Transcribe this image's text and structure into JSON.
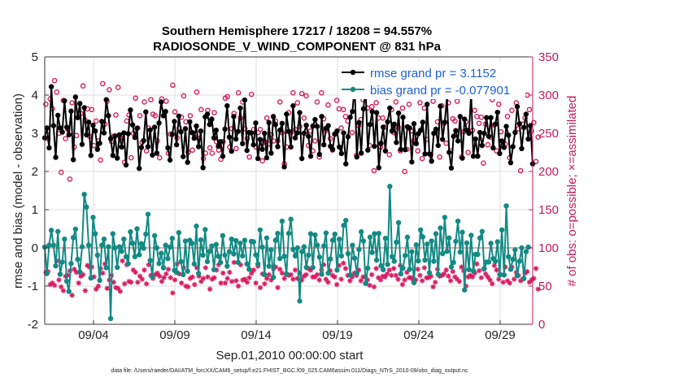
{
  "chart_data": {
    "type": "line",
    "title": "Southern Hemisphere 17217 / 18208 = 94.557%",
    "subtitle": "RADIOSONDE_V_WIND_COMPONENT @ 831 hPa",
    "xlabel": "Sep.01,2010 00:00:00 start",
    "ylabel": "rmse and bias (model - observation)",
    "ylabel_right": "# of obs: o=possible; ×=assimilated",
    "footnote": "data file: /Users/raeder/DAI/ATM_forcXX/CAM6_setup/f.e21.FHIST_BGC.f09_025.CAM6assim.011/Diags_NTrS_2010-09/obs_diag_output.nc",
    "xlim": [
      1,
      31
    ],
    "ylim": [
      -2,
      5
    ],
    "ylim_right": [
      0,
      350
    ],
    "x_ticks": [
      4,
      9,
      14,
      19,
      24,
      29
    ],
    "x_tick_labels": [
      "09/04",
      "09/09",
      "09/14",
      "09/19",
      "09/24",
      "09/29"
    ],
    "y_ticks": [
      -2,
      -1,
      0,
      1,
      2,
      3,
      4,
      5
    ],
    "y_tick_labels": [
      "-2",
      "-1",
      "0",
      "1",
      "2",
      "3",
      "4",
      "5"
    ],
    "y_ticks_right": [
      0,
      50,
      100,
      150,
      200,
      250,
      300,
      350
    ],
    "y_tick_labels_right": [
      "0",
      "50",
      "100",
      "150",
      "200",
      "250",
      "300",
      "350"
    ],
    "legend": [
      "rmse grand pr = 3.1152",
      "bias grand pr = -0.077901"
    ],
    "reference_line": 0,
    "colors": {
      "rmse": "#000000",
      "bias": "#138a84",
      "counts": "#d81b60",
      "reference": "#e6aaaa",
      "legend_text": "#1b5fd6"
    },
    "series": [
      {
        "name": "rmse",
        "values": [
          2.88,
          3.14,
          2.62,
          4.22,
          3.2,
          2.37,
          3.47,
          3.14,
          3.03,
          3.85,
          3.16,
          2.96,
          3.58,
          2.31,
          3.95,
          3.41,
          3.78,
          2.71,
          3.67,
          2.96,
          3.29,
          2.42,
          3.21,
          3.06,
          2.58,
          2.74,
          3.31,
          3.01,
          3.88,
          3.46,
          2.86,
          2.42,
          2.93,
          2.35,
          2.96,
          2.64,
          3.01,
          2.17,
          2.99,
          3.61,
          3.22,
          2.89,
          3.13,
          2.08,
          2.63,
          2.81,
          3.56,
          2.65,
          3.09,
          2.43,
          3.16,
          2.48,
          3.27,
          3.82,
          3.46,
          3.57,
          2.62,
          2.3,
          2.97,
          3.31,
          2.7,
          3.45,
          3.04,
          2.39,
          3.12,
          2.24,
          3.3,
          3.02,
          2.87,
          3.19,
          2.65,
          3.06,
          2.1,
          3.43,
          3.5,
          3.23,
          3.37,
          2.88,
          3.08,
          2.66,
          2.78,
          2.4,
          3.11,
          3.72,
          2.9,
          2.53,
          3.44,
          2.85,
          3.05,
          3.66,
          2.73,
          3.87,
          2.55,
          3.02,
          3.01,
          2.7,
          3.27,
          2.34,
          2.84,
          2.58,
          3.0,
          2.36,
          3.28,
          2.48,
          3.44,
          3.23,
          2.65,
          3.08,
          3.26,
          2.12,
          3.5,
          3.05,
          2.64,
          3.72,
          2.88,
          3.01,
          3.54,
          2.34,
          3.0,
          3.21,
          2.92,
          2.4,
          3.19,
          3.36,
          3.18,
          2.45,
          3.44,
          2.7,
          3.13,
          3.2,
          2.66,
          2.58,
          2.98,
          3.06,
          2.64,
          2.47,
          3.01,
          2.2,
          2.91,
          3.42,
          3.57,
          4.25,
          2.38,
          3.28,
          2.48,
          3.64,
          4.14,
          2.56,
          3.23,
          3.57,
          2.66,
          3.54,
          2.1,
          2.74,
          3.16,
          2.54,
          3.3,
          3.66,
          3.06,
          3.24,
          2.76,
          3.53,
          2.58,
          3.42,
          2.57,
          3.17,
          3.14,
          2.25,
          3.25,
          2.73,
          2.99,
          3.08,
          3.29,
          2.46,
          3.76,
          2.46,
          2.27,
          3.0,
          3.11,
          2.68,
          3.71,
          2.84,
          3.29,
          3.95,
          2.5,
          2.09,
          2.92,
          3.07,
          2.8,
          3.44,
          2.35,
          3.37,
          3.08,
          3.0,
          4.05,
          2.4,
          2.85,
          2.4,
          3.02,
          2.68,
          3.0,
          3.41,
          2.92,
          3.41,
          2.62,
          3.24,
          3.55,
          2.47,
          2.8,
          2.63,
          3.18,
          2.95,
          2.23,
          2.65,
          3.02,
          3.7,
          3.25,
          2.6,
          3.15,
          3.5,
          2.85,
          3.2,
          2.2
        ]
      },
      {
        "name": "bias",
        "values": [
          0.02,
          -0.67,
          0.07,
          0.46,
          0.07,
          -0.47,
          0.43,
          -0.69,
          -0.37,
          0.23,
          -0.87,
          -1.14,
          -0.41,
          0.27,
          0.49,
          -0.3,
          -0.63,
          0.03,
          1.4,
          1.07,
          0.07,
          -0.79,
          0.8,
          0.37,
          -0.19,
          -0.85,
          0.07,
          0.23,
          -0.52,
          0.03,
          -1.85,
          0.37,
          0.0,
          -0.51,
          0.03,
          -0.09,
          0.23,
          -0.23,
          -0.41,
          0.42,
          0.12,
          -0.23,
          0.5,
          -0.18,
          0.11,
          -0.01,
          0.36,
          0.88,
          -0.33,
          -0.76,
          0.32,
          0.0,
          -0.41,
          -0.14,
          -0.52,
          0.07,
          -0.28,
          0.02,
          0.25,
          -0.59,
          -0.64,
          0.4,
          -0.36,
          -0.7,
          0.18,
          -0.61,
          0.2,
          0.12,
          -0.42,
          0.57,
          -0.67,
          0.21,
          -0.19,
          0.48,
          -0.36,
          -0.09,
          0.05,
          -0.57,
          0.09,
          -0.22,
          -0.38,
          0.32,
          -0.19,
          -0.48,
          -0.1,
          0.23,
          -0.16,
          0.19,
          -0.38,
          0.12,
          -0.21,
          0.2,
          -0.42,
          -0.56,
          0.17,
          0.16,
          -0.18,
          -0.42,
          0.47,
          0.02,
          -0.7,
          0.26,
          -0.48,
          -0.05,
          -0.77,
          0.2,
          0.38,
          -0.28,
          0.7,
          -0.22,
          -0.69,
          0.38,
          0.75,
          -0.04,
          -0.21,
          0.0,
          -1.39,
          -0.1,
          0.03,
          -0.51,
          -0.19,
          0.37,
          -0.51,
          0.34,
          0.07,
          -0.24,
          -0.69,
          0.05,
          0.39,
          -0.66,
          -0.29,
          0.2,
          0.36,
          -0.58,
          0.23,
          -0.21,
          0.59,
          0.72,
          -0.15,
          -0.71,
          0.07,
          -0.27,
          -0.66,
          -0.04,
          0.42,
          0.18,
          -0.93,
          -0.53,
          0.28,
          -0.12,
          0.37,
          -0.32,
          0.38,
          -0.47,
          -0.57,
          0.25,
          -0.43,
          1.61,
          -0.23,
          -0.35,
          0.15,
          0.66,
          -0.68,
          -0.53,
          -0.2,
          0.28,
          -0.56,
          -0.1,
          -0.91,
          0.08,
          -0.34,
          0.47,
          0.29,
          -0.32,
          0.1,
          -0.65,
          0.18,
          -0.35,
          0.37,
          -0.69,
          0.52,
          -0.15,
          0.8,
          -0.09,
          0.26,
          -0.5,
          -0.38,
          0.17,
          0.7,
          -0.11,
          0.41,
          -1.1,
          0.13,
          -0.57,
          0.33,
          -0.6,
          -0.17,
          -0.17,
          0.26,
          0.43,
          -0.54,
          -0.37,
          -0.37,
          0.12,
          -0.28,
          -0.35,
          0.16,
          -0.7,
          0.47,
          -0.71,
          1.1,
          -0.23,
          -0.56,
          -0.3,
          -0.05,
          -0.73,
          -0.35,
          0.0,
          -0.8,
          -0.1,
          0.02
        ]
      },
      {
        "name": "obs possible",
        "values": [
          288,
          243,
          295,
          282,
          319,
          304,
          250,
          199,
          293,
          243,
          255,
          190,
          290,
          232,
          247,
          272,
          276,
          312,
          267,
          282,
          246,
          281,
          234,
          266,
          240,
          215,
          315,
          262,
          292,
          307,
          239,
          246,
          274,
          310,
          244,
          246,
          212,
          266,
          274,
          218,
          250,
          296,
          257,
          273,
          238,
          291,
          227,
          257,
          294,
          275,
          273,
          240,
          218,
          295,
          273,
          292,
          224,
          249,
          313,
          278,
          244,
          257,
          271,
          299,
          265,
          225,
          273,
          228,
          245,
          304,
          243,
          281,
          217,
          224,
          280,
          231,
          224,
          277,
          239,
          228,
          216,
          239,
          296,
          298,
          232,
          256,
          276,
          230,
          303,
          270,
          291,
          256,
          243,
          219,
          301,
          255,
          232,
          251,
          255,
          214,
          239,
          270,
          236,
          248,
          240,
          266,
          240,
          291,
          251,
          210,
          232,
          277,
          251,
          303,
          255,
          290,
          259,
          302,
          270,
          299,
          234,
          253,
          227,
          240,
          291,
          219,
          303,
          269,
          254,
          287,
          243,
          228,
          249,
          293,
          282,
          257,
          281,
          272,
          266,
          299,
          251,
          300,
          221,
          260,
          268,
          294,
          300,
          283,
          234,
          285,
          201,
          290,
          270,
          232,
          270,
          258,
          297,
          222,
          281,
          251,
          291,
          258,
          227,
          283,
          200,
          229,
          288,
          253,
          240,
          238,
          227,
          290,
          217,
          283,
          242,
          302,
          222,
          292,
          251,
          265,
          219,
          286,
          263,
          237,
          290,
          227,
          269,
          266,
          292,
          298,
          219,
          252,
          265,
          225,
          304,
          254,
          280,
          272,
          263,
          271,
          211,
          262,
          235,
          245,
          294,
          261,
          227,
          288,
          252,
          298,
          236,
          272,
          218,
          280,
          302,
          290,
          256,
          201,
          262,
          270,
          300,
          281,
          253,
          264,
          213,
          245
        ]
      },
      {
        "name": "obs assimilated",
        "values": [
          68,
          69,
          52,
          54,
          51,
          83,
          58,
          49,
          44,
          63,
          64,
          70,
          38,
          72,
          68,
          54,
          63,
          65,
          44,
          77,
          75,
          75,
          62,
          46,
          50,
          73,
          67,
          79,
          47,
          58,
          64,
          55,
          48,
          47,
          43,
          83,
          53,
          78,
          56,
          55,
          71,
          68,
          55,
          63,
          59,
          71,
          53,
          78,
          64,
          60,
          65,
          67,
          63,
          56,
          61,
          66,
          72,
          61,
          41,
          58,
          79,
          66,
          54,
          74,
          50,
          49,
          60,
          62,
          52,
          74,
          63,
          56,
          60,
          74,
          62,
          46,
          59,
          61,
          71,
          78,
          54,
          67,
          54,
          60,
          68,
          56,
          81,
          57,
          50,
          78,
          58,
          59,
          55,
          61,
          67,
          71,
          54,
          76,
          48,
          66,
          53,
          60,
          65,
          58,
          73,
          75,
          48,
          72,
          67,
          60,
          66,
          64,
          65,
          59,
          71,
          60,
          67,
          58,
          63,
          65,
          73,
          71,
          62,
          62,
          65,
          58,
          71,
          78,
          59,
          55,
          70,
          64,
          62,
          52,
          77,
          59,
          80,
          73,
          64,
          57,
          62,
          67,
          64,
          71,
          57,
          62,
          62,
          58,
          51,
          65,
          49,
          73,
          61,
          58,
          63,
          62,
          66,
          71,
          64,
          73,
          64,
          59,
          77,
          52,
          58,
          68,
          61,
          61,
          57,
          58,
          72,
          64,
          57,
          74,
          61,
          61,
          63,
          49,
          55,
          72,
          63,
          64,
          66,
          71,
          63,
          57,
          69,
          62,
          59,
          56,
          75,
          70,
          50,
          62,
          64,
          62,
          67,
          79,
          70,
          61,
          72,
          66,
          62,
          58,
          53,
          77,
          71,
          59,
          65,
          55,
          75,
          57,
          54,
          75,
          59,
          68,
          64,
          57,
          59,
          67,
          69,
          55,
          58,
          60,
          73,
          46
        ]
      }
    ]
  }
}
